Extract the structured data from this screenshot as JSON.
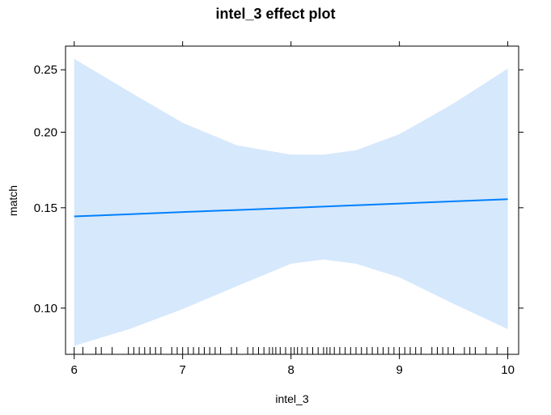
{
  "chart_data": {
    "type": "line",
    "title": "intel_3 effect plot",
    "xlabel": "intel_3",
    "ylabel": "match",
    "xlim": [
      5.92,
      10.1
    ],
    "ylim": [
      0.0824,
      0.271
    ],
    "y_scale": "logit",
    "x_ticks": [
      6,
      7,
      8,
      9,
      10
    ],
    "x_tick_labels": [
      "6",
      "7",
      "8",
      "9",
      "10"
    ],
    "y_ticks": [
      0.1,
      0.15,
      0.2,
      0.25
    ],
    "y_tick_labels": [
      "0.10",
      "0.15",
      "0.20",
      "0.25"
    ],
    "series": [
      {
        "color": "#0080ff",
        "x": [
          6,
          6.5,
          7,
          7.5,
          8,
          8.5,
          9,
          9.5,
          10
        ],
        "y": [
          0.145,
          0.1462,
          0.1475,
          0.1487,
          0.1499,
          0.1512,
          0.1525,
          0.1538,
          0.1551
        ]
      }
    ],
    "confidence_band": {
      "fill": "#d6e8fc",
      "x": [
        6,
        6.5,
        7,
        7.5,
        8,
        8.3,
        8.6,
        9,
        9.5,
        10
      ],
      "lower": [
        0.0854,
        0.0915,
        0.0996,
        0.1095,
        0.12,
        0.122,
        0.12,
        0.1135,
        0.1018,
        0.0916
      ],
      "upper": [
        0.2595,
        0.232,
        0.207,
        0.1905,
        0.184,
        0.184,
        0.187,
        0.1985,
        0.222,
        0.251
      ]
    },
    "rug_x": [
      6,
      6.08,
      6.2,
      6.25,
      6.35,
      6.5,
      6.55,
      6.6,
      6.65,
      6.7,
      6.75,
      6.8,
      6.9,
      6.95,
      7,
      7.05,
      7.1,
      7.15,
      7.2,
      7.25,
      7.3,
      7.35,
      7.45,
      7.5,
      7.6,
      7.65,
      7.7,
      7.75,
      7.8,
      7.83,
      7.86,
      7.9,
      7.95,
      8,
      8.03,
      8.06,
      8.1,
      8.15,
      8.2,
      8.25,
      8.3,
      8.33,
      8.36,
      8.4,
      8.45,
      8.5,
      8.55,
      8.6,
      8.65,
      8.7,
      8.75,
      8.8,
      8.85,
      8.9,
      8.95,
      9,
      9.05,
      9.1,
      9.15,
      9.2,
      9.3,
      9.35,
      9.4,
      9.45,
      9.5,
      9.6,
      9.65,
      9.7,
      9.8,
      9.9,
      10
    ]
  }
}
